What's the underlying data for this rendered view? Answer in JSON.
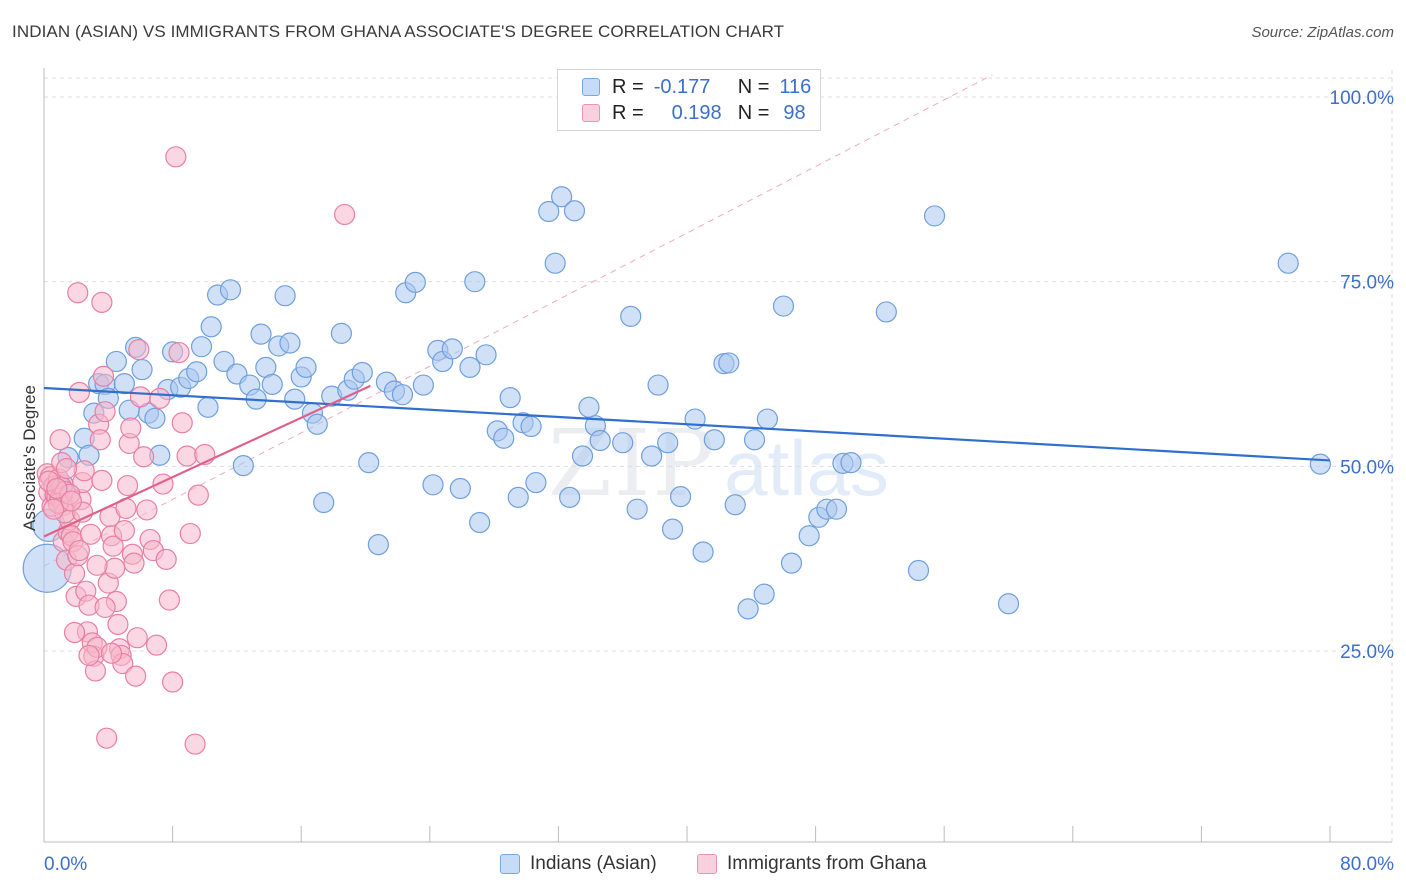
{
  "title": "INDIAN (ASIAN) VS IMMIGRANTS FROM GHANA ASSOCIATE'S DEGREE CORRELATION CHART",
  "source": "Source: ZipAtlas.com",
  "watermark": {
    "part1": "ZIP",
    "part2": "atlas"
  },
  "colors": {
    "blue_fill": "#a9c7f0",
    "blue_stroke": "#6f9fdc",
    "blue_line": "#2f6fce",
    "pink_fill": "#f6b6cb",
    "pink_stroke": "#e87fa2",
    "pink_line": "#e0608a",
    "axis_text": "#3b6fc9",
    "grid": "#dddddd"
  },
  "legend": {
    "rows": [
      {
        "r_label": "R =",
        "r_value": "-0.177",
        "n_label": "N =",
        "n_value": "116"
      },
      {
        "r_label": "R =",
        "r_value": "0.198",
        "n_label": "N =",
        "n_value": "98"
      }
    ]
  },
  "bottom_legend": {
    "series1": "Indians (Asian)",
    "series2": "Immigrants from Ghana"
  },
  "chart_data": {
    "type": "scatter",
    "title": "INDIAN (ASIAN) VS IMMIGRANTS FROM GHANA ASSOCIATE'S DEGREE CORRELATION CHART",
    "xlabel": "",
    "ylabel": "Associate's Degree",
    "xlim": [
      0,
      80
    ],
    "ylim": [
      0,
      105
    ],
    "x_tick_labels": {
      "left": "0.0%",
      "right": "80.0%"
    },
    "y_ticks": [
      {
        "value": 25,
        "label": "25.0%"
      },
      {
        "value": 50,
        "label": "50.0%"
      },
      {
        "value": 75,
        "label": "75.0%"
      },
      {
        "value": 100,
        "label": "100.0%"
      }
    ],
    "reference_line": {
      "from": [
        0,
        36.5
      ],
      "to": [
        59,
        103
      ]
    },
    "series": [
      {
        "name": "Indians (Asian)",
        "color_key": "blue",
        "trend": {
          "x0": 0,
          "y0": 60.6,
          "x1": 80,
          "y1": 50.8
        },
        "points": [
          [
            0.2,
            36.2,
            24
          ],
          [
            0.3,
            42,
            16
          ],
          [
            1.2,
            47.5,
            10
          ],
          [
            1.5,
            51.2,
            10
          ],
          [
            2.5,
            53.8,
            10
          ],
          [
            2.8,
            51.5,
            10
          ],
          [
            3.1,
            57.2,
            10
          ],
          [
            3.4,
            61.2,
            10
          ],
          [
            3.8,
            61.1,
            10
          ],
          [
            4.0,
            59.2,
            10
          ],
          [
            4.5,
            64.2,
            10
          ],
          [
            5.0,
            61.2,
            10
          ],
          [
            5.3,
            57.6,
            10
          ],
          [
            5.7,
            66.1,
            10
          ],
          [
            6.1,
            63.1,
            10
          ],
          [
            6.5,
            57.2,
            10
          ],
          [
            6.9,
            56.5,
            10
          ],
          [
            7.2,
            51.5,
            10
          ],
          [
            7.7,
            60.4,
            10
          ],
          [
            8.0,
            65.5,
            10
          ],
          [
            8.5,
            60.7,
            10
          ],
          [
            9.0,
            61.9,
            10
          ],
          [
            9.5,
            62.8,
            10
          ],
          [
            9.8,
            66.2,
            10
          ],
          [
            10.2,
            58,
            10
          ],
          [
            10.4,
            68.9,
            10
          ],
          [
            10.8,
            73.2,
            10
          ],
          [
            11.2,
            64.2,
            10
          ],
          [
            11.6,
            73.9,
            10
          ],
          [
            12.0,
            62.5,
            10
          ],
          [
            12.4,
            50.1,
            10
          ],
          [
            12.8,
            61,
            10
          ],
          [
            13.2,
            59.1,
            10
          ],
          [
            13.5,
            67.9,
            10
          ],
          [
            13.8,
            63.4,
            10
          ],
          [
            14.2,
            61.1,
            10
          ],
          [
            14.6,
            66.3,
            10
          ],
          [
            15.0,
            73.1,
            10
          ],
          [
            15.3,
            66.7,
            10
          ],
          [
            15.6,
            59.1,
            10
          ],
          [
            16.0,
            62.1,
            10
          ],
          [
            16.3,
            63.4,
            10
          ],
          [
            16.7,
            57.2,
            10
          ],
          [
            17.0,
            55.7,
            10
          ],
          [
            17.4,
            45.1,
            10
          ],
          [
            17.9,
            59.5,
            10
          ],
          [
            18.5,
            68,
            10
          ],
          [
            18.9,
            60.3,
            10
          ],
          [
            19.3,
            61.8,
            10
          ],
          [
            19.8,
            62.7,
            10
          ],
          [
            20.2,
            50.5,
            10
          ],
          [
            20.8,
            39.4,
            10
          ],
          [
            21.3,
            61.4,
            10
          ],
          [
            21.8,
            60.2,
            10
          ],
          [
            22.3,
            59.7,
            10
          ],
          [
            22.5,
            73.5,
            10
          ],
          [
            23.1,
            74.9,
            10
          ],
          [
            23.6,
            61,
            10
          ],
          [
            24.2,
            47.5,
            10
          ],
          [
            24.5,
            65.7,
            10
          ],
          [
            24.8,
            64.2,
            10
          ],
          [
            25.4,
            65.9,
            10
          ],
          [
            25.9,
            47,
            10
          ],
          [
            26.5,
            63.4,
            10
          ],
          [
            26.8,
            75,
            10
          ],
          [
            27.1,
            42.4,
            10
          ],
          [
            27.5,
            65.1,
            10
          ],
          [
            28.2,
            54.8,
            10
          ],
          [
            28.6,
            53.8,
            10
          ],
          [
            29.0,
            59.3,
            10
          ],
          [
            29.5,
            45.8,
            10
          ],
          [
            29.8,
            55.9,
            10
          ],
          [
            30.3,
            55.4,
            10
          ],
          [
            30.6,
            47.8,
            10
          ],
          [
            31.4,
            84.5,
            10
          ],
          [
            31.8,
            77.5,
            10
          ],
          [
            32.2,
            86.5,
            10
          ],
          [
            32.7,
            45.8,
            10
          ],
          [
            33.0,
            84.6,
            10
          ],
          [
            33.5,
            51.4,
            10
          ],
          [
            33.9,
            58,
            10
          ],
          [
            34.3,
            55.5,
            10
          ],
          [
            34.6,
            53.5,
            10
          ],
          [
            36.0,
            53.2,
            10
          ],
          [
            36.5,
            70.3,
            10
          ],
          [
            36.9,
            44.2,
            10
          ],
          [
            37.8,
            51.4,
            10
          ],
          [
            38.2,
            61,
            10
          ],
          [
            38.8,
            53.2,
            10
          ],
          [
            39.1,
            41.5,
            10
          ],
          [
            39.6,
            45.9,
            10
          ],
          [
            40.5,
            56.4,
            10
          ],
          [
            41.0,
            38.4,
            10
          ],
          [
            41.7,
            53.6,
            10
          ],
          [
            42.3,
            63.9,
            10
          ],
          [
            42.6,
            64,
            10
          ],
          [
            43.0,
            44.8,
            10
          ],
          [
            43.8,
            30.7,
            10
          ],
          [
            44.2,
            53.6,
            10
          ],
          [
            44.8,
            32.7,
            10
          ],
          [
            45.0,
            56.4,
            10
          ],
          [
            46.0,
            71.7,
            10
          ],
          [
            46.5,
            36.9,
            10
          ],
          [
            47.6,
            40.6,
            10
          ],
          [
            48.2,
            43.1,
            10
          ],
          [
            48.7,
            44.2,
            10
          ],
          [
            49.3,
            44.2,
            10
          ],
          [
            49.7,
            50.4,
            10
          ],
          [
            50.2,
            50.5,
            10
          ],
          [
            52.4,
            70.9,
            10
          ],
          [
            54.4,
            35.9,
            10
          ],
          [
            55.4,
            83.9,
            10
          ],
          [
            60.0,
            31.4,
            10
          ],
          [
            77.4,
            77.5,
            10
          ],
          [
            79.4,
            50.3,
            10
          ]
        ]
      },
      {
        "name": "Immigrants from Ghana",
        "color_key": "pink",
        "trend": {
          "x0": 0,
          "y0": 40.5,
          "x1": 20.3,
          "y1": 60.9
        },
        "points": [
          [
            0.2,
            49,
            10
          ],
          [
            0.3,
            46.5,
            10
          ],
          [
            0.4,
            48.6,
            10
          ],
          [
            0.5,
            44.6,
            10
          ],
          [
            0.6,
            47.3,
            10
          ],
          [
            0.7,
            46.1,
            10
          ],
          [
            0.8,
            45.9,
            10
          ],
          [
            0.9,
            48.3,
            10
          ],
          [
            1.0,
            45.7,
            10
          ],
          [
            1.1,
            47.2,
            10
          ],
          [
            1.2,
            44.7,
            10
          ],
          [
            1.3,
            46.6,
            10
          ],
          [
            1.0,
            53.6,
            10
          ],
          [
            1.1,
            50.5,
            10
          ],
          [
            1.2,
            39.8,
            10
          ],
          [
            1.4,
            37.3,
            10
          ],
          [
            1.5,
            41.1,
            10
          ],
          [
            1.6,
            42.7,
            10
          ],
          [
            1.7,
            40.6,
            10
          ],
          [
            1.8,
            39.8,
            10
          ],
          [
            1.9,
            35.5,
            10
          ],
          [
            2.0,
            32.4,
            10
          ],
          [
            2.1,
            37.9,
            10
          ],
          [
            2.2,
            38.6,
            10
          ],
          [
            2.3,
            45.5,
            10
          ],
          [
            2.4,
            47.8,
            10
          ],
          [
            2.5,
            49.4,
            10
          ],
          [
            2.6,
            33.1,
            10
          ],
          [
            2.7,
            27.6,
            10
          ],
          [
            2.8,
            31.2,
            10
          ],
          [
            3.0,
            26.1,
            10
          ],
          [
            3.1,
            24.3,
            10
          ],
          [
            3.2,
            22.3,
            10
          ],
          [
            3.3,
            25.5,
            10
          ],
          [
            3.4,
            55.7,
            10
          ],
          [
            3.5,
            53.6,
            10
          ],
          [
            3.6,
            48.1,
            10
          ],
          [
            3.7,
            62.2,
            10
          ],
          [
            3.8,
            57.4,
            10
          ],
          [
            3.9,
            13.2,
            10
          ],
          [
            4.0,
            34.2,
            10
          ],
          [
            4.1,
            43.2,
            10
          ],
          [
            4.2,
            40.6,
            10
          ],
          [
            4.3,
            39.2,
            10
          ],
          [
            4.4,
            36.2,
            10
          ],
          [
            4.5,
            31.7,
            10
          ],
          [
            4.6,
            28.6,
            10
          ],
          [
            4.7,
            25.3,
            10
          ],
          [
            4.8,
            24.4,
            10
          ],
          [
            4.9,
            23.3,
            10
          ],
          [
            5.0,
            41.3,
            10
          ],
          [
            5.1,
            44.3,
            10
          ],
          [
            5.2,
            47.4,
            10
          ],
          [
            5.3,
            53.1,
            10
          ],
          [
            5.4,
            55.2,
            10
          ],
          [
            5.5,
            38.1,
            10
          ],
          [
            5.6,
            36.9,
            10
          ],
          [
            5.7,
            21.6,
            10
          ],
          [
            5.8,
            26.8,
            10
          ],
          [
            5.9,
            65.8,
            10
          ],
          [
            6.0,
            59.4,
            10
          ],
          [
            6.2,
            51.3,
            10
          ],
          [
            6.4,
            44.1,
            10
          ],
          [
            6.6,
            40.1,
            10
          ],
          [
            6.8,
            38.6,
            10
          ],
          [
            7.0,
            25.8,
            10
          ],
          [
            7.2,
            59.2,
            10
          ],
          [
            7.4,
            47.6,
            10
          ],
          [
            7.6,
            37.4,
            10
          ],
          [
            7.8,
            31.9,
            10
          ],
          [
            8.0,
            20.8,
            10
          ],
          [
            8.2,
            91.9,
            10
          ],
          [
            8.4,
            65.4,
            10
          ],
          [
            8.6,
            55.9,
            10
          ],
          [
            8.9,
            51.4,
            10
          ],
          [
            9.1,
            40.9,
            10
          ],
          [
            9.4,
            12.4,
            10
          ],
          [
            9.6,
            46.1,
            10
          ],
          [
            10.0,
            51.6,
            10
          ],
          [
            18.7,
            84.1,
            10
          ],
          [
            2.2,
            60,
            10
          ],
          [
            3.6,
            72.2,
            10
          ],
          [
            2.1,
            73.5,
            10
          ],
          [
            1.3,
            43.7,
            10
          ],
          [
            0.9,
            45,
            10
          ],
          [
            1.6,
            46.2,
            10
          ],
          [
            2.9,
            40.8,
            10
          ],
          [
            1.9,
            27.5,
            10
          ],
          [
            2.8,
            24.4,
            10
          ],
          [
            3.3,
            36.6,
            10
          ],
          [
            0.6,
            44.2,
            10
          ],
          [
            1.4,
            49.7,
            10
          ],
          [
            2.4,
            43.8,
            10
          ],
          [
            3.8,
            30.9,
            10
          ],
          [
            4.2,
            24.7,
            10
          ],
          [
            0.3,
            48,
            10
          ],
          [
            0.8,
            47,
            10
          ],
          [
            1.7,
            45.3,
            10
          ]
        ]
      }
    ]
  }
}
